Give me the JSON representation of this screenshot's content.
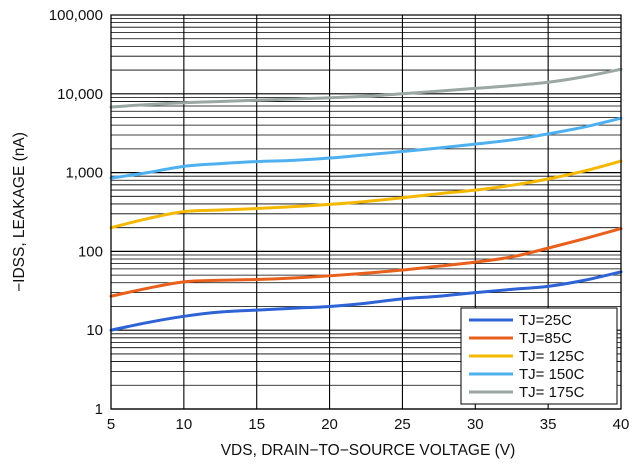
{
  "chart_data": {
    "type": "line",
    "title": "",
    "xlabel": "VDS, DRAIN−TO−SOURCE VOLTAGE (V)",
    "ylabel": "−IDSS, LEAKAGE (nA)",
    "x_scale": "linear",
    "y_scale": "log",
    "xlim": [
      5,
      40
    ],
    "ylim": [
      1,
      100000
    ],
    "x_ticks": [
      5,
      10,
      15,
      20,
      25,
      30,
      35,
      40
    ],
    "x_tick_labels": [
      "5",
      "10",
      "15",
      "20",
      "25",
      "30",
      "35",
      "40"
    ],
    "y_ticks": [
      1,
      10,
      100,
      1000,
      10000,
      100000
    ],
    "y_tick_labels": [
      "1",
      "10",
      "100",
      "1,000",
      "10,000",
      "100,000"
    ],
    "grid": true,
    "legend_position": "bottom-right",
    "x": [
      5,
      7.5,
      10,
      12.5,
      15,
      17.5,
      20,
      22.5,
      25,
      27.5,
      30,
      32.5,
      35,
      37.5,
      40
    ],
    "series": [
      {
        "name": "TJ=25C",
        "color": "#2e63d6",
        "values": [
          10,
          12.5,
          15,
          17,
          18,
          19,
          20,
          22,
          25,
          27,
          30,
          33,
          36,
          43,
          55
        ]
      },
      {
        "name": "TJ=85C",
        "color": "#e8601c",
        "values": [
          27,
          34,
          41,
          43,
          44,
          46,
          49,
          53,
          58,
          65,
          73,
          85,
          110,
          145,
          195
        ]
      },
      {
        "name": "TJ= 125C",
        "color": "#f5b800",
        "values": [
          200,
          260,
          320,
          335,
          350,
          370,
          395,
          430,
          480,
          540,
          600,
          690,
          830,
          1050,
          1400
        ]
      },
      {
        "name": "TJ= 150C",
        "color": "#4fb0f0",
        "values": [
          850,
          1000,
          1200,
          1300,
          1380,
          1430,
          1530,
          1680,
          1850,
          2050,
          2300,
          2600,
          3100,
          3800,
          4900
        ]
      },
      {
        "name": "TJ= 175C",
        "color": "#9aa7a2",
        "values": [
          6800,
          7300,
          7700,
          8000,
          8300,
          8600,
          8900,
          9300,
          10000,
          10800,
          11700,
          12700,
          14000,
          16500,
          20500
        ]
      }
    ]
  }
}
